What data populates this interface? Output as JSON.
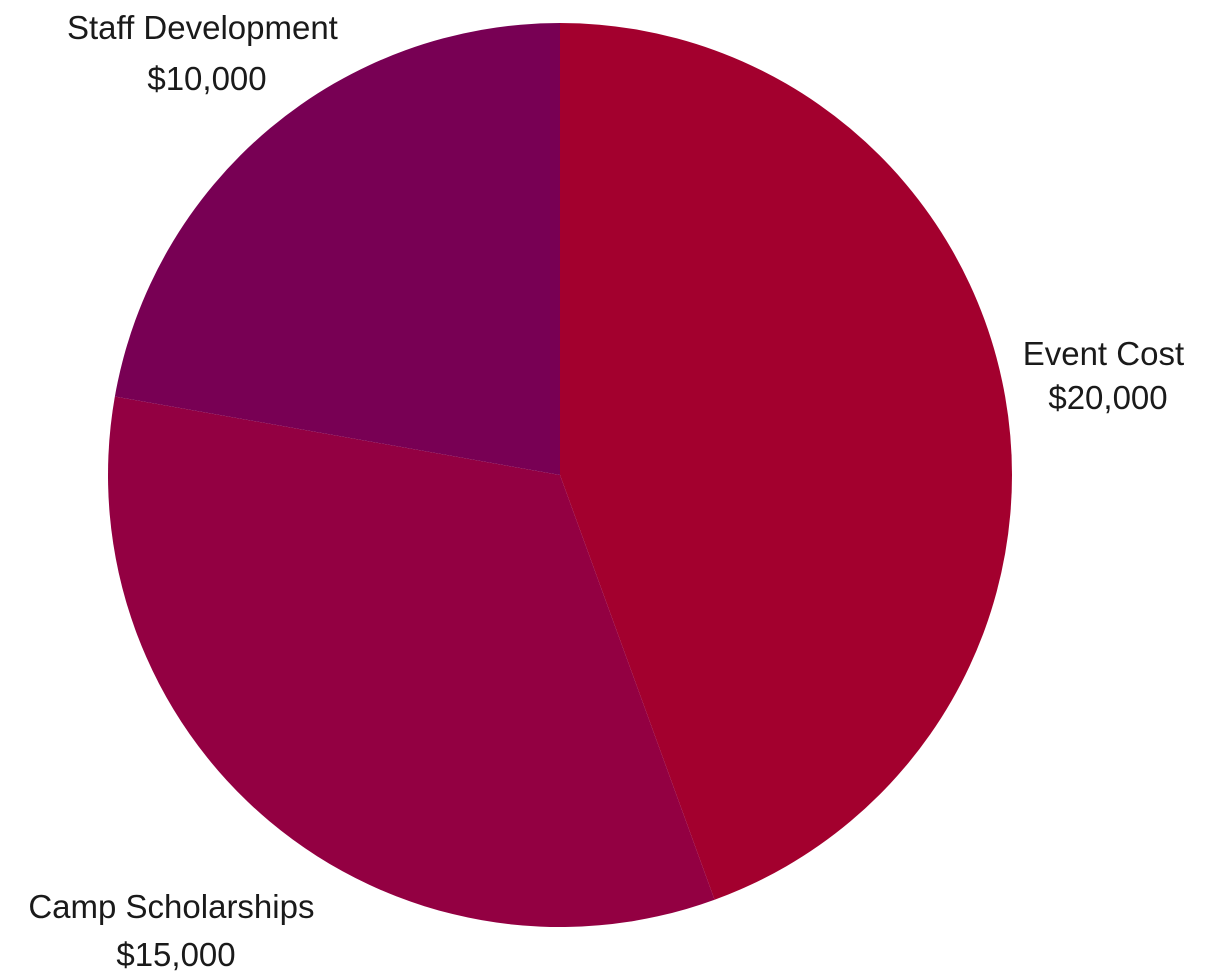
{
  "chart_data": {
    "type": "pie",
    "title": "",
    "slices": [
      {
        "name": "Event Cost",
        "value": 20000,
        "value_label": "$20,000",
        "color": "#a3002e"
      },
      {
        "name": "Camp Scholarships",
        "value": 15000,
        "value_label": "$15,000",
        "color": "#930042"
      },
      {
        "name": "Staff Development",
        "value": 10000,
        "value_label": "$10,000",
        "color": "#780054"
      }
    ],
    "start_angle": "12 o'clock",
    "direction": "clockwise",
    "legend": "none",
    "labels": "outside, category name with value below"
  }
}
